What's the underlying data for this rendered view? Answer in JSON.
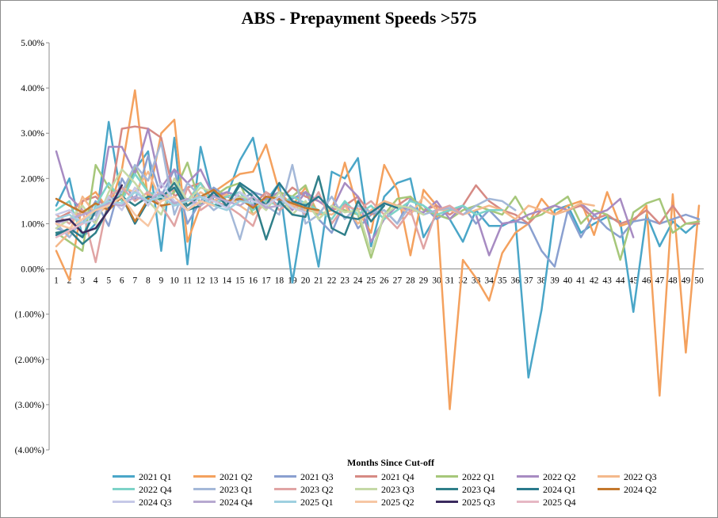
{
  "chart_data": {
    "type": "line",
    "title": "ABS - Prepayment Speeds >575",
    "xlabel": "Months Since Cut-off",
    "ylabel": "",
    "x": [
      1,
      2,
      3,
      4,
      5,
      6,
      7,
      8,
      9,
      10,
      11,
      12,
      13,
      14,
      15,
      16,
      17,
      18,
      19,
      20,
      21,
      22,
      23,
      24,
      25,
      26,
      27,
      28,
      29,
      30,
      31,
      32,
      33,
      34,
      35,
      36,
      37,
      38,
      39,
      40,
      41,
      42,
      43,
      44,
      45,
      46,
      47,
      48,
      49,
      50
    ],
    "ylim": [
      -4,
      5
    ],
    "yticks": [
      -4,
      -3,
      -2,
      -1,
      0,
      1,
      2,
      3,
      4,
      5
    ],
    "ytick_labels": [
      "(4.00%)",
      "(3.00%)",
      "(2.00%)",
      "(1.00%)",
      "0.00%",
      "1.00%",
      "2.00%",
      "3.00%",
      "4.00%",
      "5.00%"
    ],
    "grid": false,
    "legend_position": "bottom",
    "series": [
      {
        "name": "2021 Q1",
        "color": "#4aa6c8",
        "values": [
          1.4,
          2.0,
          0.7,
          1.0,
          3.25,
          1.5,
          2.2,
          2.6,
          0.4,
          2.9,
          0.1,
          2.7,
          1.5,
          1.6,
          2.4,
          2.9,
          1.5,
          1.9,
          -0.3,
          1.5,
          0.05,
          2.15,
          2.0,
          2.45,
          0.5,
          1.6,
          1.9,
          2.0,
          0.7,
          1.2,
          1.1,
          0.6,
          1.3,
          0.95,
          0.95,
          1.1,
          -2.4,
          -0.9,
          1.3,
          1.4,
          0.8,
          1.0,
          1.15,
          1.05,
          -0.95,
          1.2,
          0.5,
          1.05,
          0.8,
          1.05
        ]
      },
      {
        "name": "2021 Q2",
        "color": "#f4a15e",
        "values": [
          0.4,
          -0.25,
          1.5,
          1.7,
          1.3,
          2.2,
          3.95,
          1.5,
          3.0,
          3.3,
          0.6,
          1.4,
          1.7,
          1.9,
          2.1,
          2.15,
          2.75,
          1.7,
          1.4,
          1.8,
          1.2,
          1.3,
          2.35,
          1.3,
          0.8,
          2.3,
          1.75,
          0.3,
          1.75,
          1.4,
          -3.1,
          0.2,
          -0.2,
          -0.7,
          0.35,
          0.8,
          1.0,
          1.55,
          1.2,
          1.4,
          1.5,
          0.75,
          1.7,
          0.95,
          1.05,
          1.4,
          -2.8,
          1.65,
          -1.85,
          1.4
        ]
      },
      {
        "name": "2021 Q3",
        "color": "#8aa0d0",
        "values": [
          0.9,
          0.8,
          1.0,
          1.5,
          0.95,
          2.0,
          1.5,
          2.5,
          1.6,
          2.2,
          1.0,
          1.5,
          1.8,
          1.6,
          1.5,
          1.7,
          1.6,
          1.4,
          1.55,
          1.7,
          1.1,
          0.8,
          1.5,
          0.9,
          1.2,
          1.3,
          1.0,
          1.55,
          1.4,
          1.1,
          1.3,
          1.4,
          1.0,
          1.3,
          1.0,
          1.05,
          1.0,
          0.4,
          0.05,
          1.3,
          0.7,
          1.2,
          0.9,
          0.7,
          1.05,
          1.1,
          1.0,
          1.1,
          1.2,
          1.1
        ]
      },
      {
        "name": "2021 Q4",
        "color": "#d68a84",
        "values": [
          1.1,
          1.25,
          1.5,
          1.6,
          1.3,
          3.1,
          3.15,
          3.1,
          2.9,
          1.6,
          1.8,
          1.9,
          1.5,
          1.7,
          1.6,
          1.4,
          1.7,
          1.5,
          1.8,
          1.6,
          1.5,
          1.3,
          1.4,
          1.6,
          1.2,
          1.5,
          1.4,
          1.6,
          1.3,
          1.4,
          1.2,
          1.4,
          1.85,
          1.5,
          1.3,
          1.2,
          1.0,
          1.3,
          1.2,
          1.3,
          1.4,
          1.1,
          1.2,
          1.0,
          1.1,
          1.3,
          1.0,
          1.4,
          1.0,
          1.0
        ]
      },
      {
        "name": "2022 Q1",
        "color": "#a6c77a",
        "values": [
          0.8,
          0.6,
          0.4,
          2.3,
          1.8,
          1.6,
          2.25,
          1.7,
          1.5,
          1.7,
          2.35,
          1.4,
          1.6,
          1.8,
          1.9,
          1.2,
          1.5,
          1.7,
          1.6,
          1.85,
          1.1,
          1.4,
          1.3,
          1.2,
          0.25,
          1.2,
          1.55,
          1.6,
          1.3,
          1.2,
          1.1,
          1.3,
          1.4,
          1.3,
          1.2,
          1.6,
          1.1,
          1.2,
          1.4,
          1.6,
          1.0,
          1.3,
          1.2,
          0.2,
          1.25,
          1.45,
          1.55,
          0.8,
          1.0,
          1.05
        ]
      },
      {
        "name": "2022 Q2",
        "color": "#a78bc2",
        "values": [
          2.6,
          1.6,
          1.3,
          1.0,
          2.7,
          2.7,
          2.1,
          3.1,
          1.8,
          2.2,
          1.9,
          2.2,
          1.6,
          1.7,
          1.6,
          1.4,
          1.55,
          1.7,
          1.3,
          1.7,
          1.5,
          1.3,
          1.9,
          1.6,
          0.6,
          1.1,
          1.4,
          1.3,
          1.25,
          1.5,
          1.1,
          1.4,
          1.2,
          0.3,
          1.0,
          1.05,
          1.2,
          1.3,
          1.4,
          1.3,
          1.45,
          1.2,
          1.3,
          1.55,
          0.7,
          null,
          null,
          null,
          null,
          null
        ]
      },
      {
        "name": "2022 Q3",
        "color": "#f4b98c",
        "values": [
          0.5,
          0.8,
          1.6,
          1.2,
          1.4,
          1.8,
          1.7,
          2.15,
          1.5,
          1.8,
          1.4,
          1.7,
          1.5,
          1.65,
          1.4,
          1.2,
          1.45,
          1.6,
          1.4,
          1.3,
          1.25,
          1.2,
          1.4,
          1.0,
          1.3,
          1.5,
          1.4,
          1.2,
          1.6,
          1.3,
          1.3,
          1.2,
          1.3,
          1.4,
          1.3,
          1.1,
          1.4,
          1.3,
          1.2,
          1.3,
          1.45,
          1.4,
          null,
          null,
          null,
          null,
          null,
          null,
          null,
          null
        ]
      },
      {
        "name": "2022 Q4",
        "color": "#7dd3c8",
        "values": [
          1.3,
          1.5,
          0.7,
          1.4,
          1.9,
          1.5,
          2.1,
          1.7,
          1.6,
          1.8,
          1.5,
          1.9,
          1.4,
          1.6,
          1.7,
          1.3,
          1.5,
          1.4,
          1.6,
          1.45,
          1.3,
          1.1,
          1.5,
          1.2,
          1.4,
          1.1,
          1.3,
          1.5,
          1.4,
          1.2,
          1.3,
          1.4,
          1.2,
          1.3,
          1.3,
          null,
          null,
          null,
          null,
          null,
          null,
          null,
          null,
          null,
          null,
          null,
          null,
          null,
          null,
          null
        ]
      },
      {
        "name": "2023 Q1",
        "color": "#a4b8d8",
        "values": [
          1.0,
          0.7,
          1.1,
          1.2,
          1.5,
          1.7,
          2.3,
          1.95,
          2.8,
          1.2,
          1.9,
          1.6,
          1.3,
          1.5,
          0.65,
          1.7,
          1.4,
          1.2,
          2.3,
          1.0,
          1.2,
          1.6,
          1.1,
          1.4,
          1.25,
          1.3,
          1.0,
          1.4,
          1.2,
          1.3,
          1.35,
          1.2,
          1.4,
          1.55,
          1.5,
          1.3,
          null,
          null,
          null,
          null,
          null,
          null,
          null,
          null,
          null,
          null,
          null,
          null,
          null,
          null
        ]
      },
      {
        "name": "2023 Q2",
        "color": "#e0a4a4",
        "values": [
          1.2,
          1.0,
          1.3,
          0.15,
          1.6,
          1.8,
          1.5,
          1.7,
          1.4,
          0.95,
          1.8,
          1.3,
          1.5,
          1.4,
          1.2,
          0.95,
          1.7,
          1.3,
          1.5,
          1.2,
          1.7,
          1.0,
          1.4,
          1.3,
          1.5,
          1.2,
          0.9,
          1.3,
          0.45,
          1.3,
          1.4,
          1.2,
          null,
          null,
          null,
          null,
          null,
          null,
          null,
          null,
          null,
          null,
          null,
          null,
          null,
          null,
          null,
          null,
          null,
          null
        ]
      },
      {
        "name": "2023 Q3",
        "color": "#c5d9a6",
        "values": [
          0.9,
          1.1,
          1.4,
          1.0,
          1.7,
          2.2,
          1.9,
          1.5,
          1.2,
          2.0,
          1.5,
          1.8,
          1.7,
          1.4,
          1.6,
          1.55,
          1.3,
          1.7,
          1.2,
          1.5,
          1.1,
          1.4,
          1.25,
          1.3,
          0.35,
          1.2,
          1.4,
          1.35,
          1.2,
          null,
          null,
          null,
          null,
          null,
          null,
          null,
          null,
          null,
          null,
          null,
          null,
          null,
          null,
          null,
          null,
          null,
          null,
          null,
          null,
          null
        ]
      },
      {
        "name": "2023 Q4",
        "color": "#2f7f89",
        "values": [
          0.8,
          0.85,
          0.55,
          0.8,
          1.35,
          1.6,
          1.4,
          1.6,
          1.55,
          1.9,
          1.4,
          1.6,
          1.4,
          1.4,
          1.85,
          1.6,
          0.65,
          1.5,
          1.2,
          1.15,
          2.05,
          0.9,
          0.75,
          1.5,
          1.05,
          1.4,
          null,
          null,
          null,
          null,
          null,
          null,
          null,
          null,
          null,
          null,
          null,
          null,
          null,
          null,
          null,
          null,
          null,
          null,
          null,
          null,
          null,
          null,
          null,
          null
        ]
      },
      {
        "name": "2024 Q1",
        "color": "#2a7a8c",
        "values": [
          0.75,
          0.9,
          0.7,
          1.3,
          1.5,
          1.6,
          1.0,
          1.5,
          1.6,
          1.8,
          1.3,
          1.4,
          1.7,
          1.4,
          1.9,
          1.7,
          1.4,
          1.9,
          1.5,
          1.4,
          1.6,
          1.3,
          1.15,
          1.1,
          1.25,
          1.45,
          1.35,
          null,
          null,
          null,
          null,
          null,
          null,
          null,
          null,
          null,
          null,
          null,
          null,
          null,
          null,
          null,
          null,
          null,
          null,
          null,
          null,
          null,
          null,
          null
        ]
      },
      {
        "name": "2024 Q2",
        "color": "#c4782c",
        "values": [
          1.55,
          1.4,
          1.25,
          1.45,
          1.3,
          1.6,
          1.05,
          1.55,
          1.4,
          1.45,
          1.5,
          1.6,
          1.75,
          1.5,
          1.55,
          1.35,
          1.6,
          1.55,
          1.45,
          1.35,
          1.3,
          null,
          null,
          null,
          null,
          null,
          null,
          null,
          null,
          null,
          null,
          null,
          null,
          null,
          null,
          null,
          null,
          null,
          null,
          null,
          null,
          null,
          null,
          null,
          null,
          null,
          null,
          null,
          null,
          null
        ]
      },
      {
        "name": "2024 Q3",
        "color": "#c6c9e8",
        "values": [
          1.2,
          1.3,
          1.0,
          1.1,
          1.6,
          1.3,
          1.8,
          1.4,
          1.9,
          1.5,
          1.3,
          1.6,
          1.5,
          1.35,
          1.7,
          1.5,
          1.4,
          1.6,
          1.35,
          1.25,
          null,
          null,
          null,
          null,
          null,
          null,
          null,
          null,
          null,
          null,
          null,
          null,
          null,
          null,
          null,
          null,
          null,
          null,
          null,
          null,
          null,
          null,
          null,
          null,
          null,
          null,
          null,
          null,
          null,
          null
        ]
      },
      {
        "name": "2024 Q4",
        "color": "#b7a9d0",
        "values": [
          1.0,
          1.1,
          1.2,
          1.3,
          1.45,
          1.4,
          1.6,
          1.5,
          1.7,
          1.45,
          1.55,
          1.4,
          1.6,
          1.5,
          1.4,
          1.6,
          1.35,
          1.4,
          null,
          null,
          null,
          null,
          null,
          null,
          null,
          null,
          null,
          null,
          null,
          null,
          null,
          null,
          null,
          null,
          null,
          null,
          null,
          null,
          null,
          null,
          null,
          null,
          null,
          null,
          null,
          null,
          null,
          null,
          null,
          null
        ]
      },
      {
        "name": "2025 Q1",
        "color": "#9ed0e0",
        "values": [
          1.1,
          1.2,
          1.0,
          1.35,
          1.5,
          1.45,
          1.7,
          1.5,
          1.6,
          1.4,
          1.5,
          1.6,
          1.4,
          1.3,
          1.5,
          1.45,
          null,
          null,
          null,
          null,
          null,
          null,
          null,
          null,
          null,
          null,
          null,
          null,
          null,
          null,
          null,
          null,
          null,
          null,
          null,
          null,
          null,
          null,
          null,
          null,
          null,
          null,
          null,
          null,
          null,
          null,
          null,
          null,
          null,
          null
        ]
      },
      {
        "name": "2025 Q2",
        "color": "#f7c7a4",
        "values": [
          1.0,
          0.9,
          1.1,
          1.3,
          1.4,
          1.6,
          1.2,
          0.95,
          1.5,
          1.6,
          1.3,
          1.5,
          1.4,
          null,
          null,
          null,
          null,
          null,
          null,
          null,
          null,
          null,
          null,
          null,
          null,
          null,
          null,
          null,
          null,
          null,
          null,
          null,
          null,
          null,
          null,
          null,
          null,
          null,
          null,
          null,
          null,
          null,
          null,
          null,
          null,
          null,
          null,
          null,
          null,
          null
        ]
      },
      {
        "name": "2025 Q3",
        "color": "#3a2a5e",
        "values": [
          1.05,
          1.1,
          0.8,
          0.9,
          1.3,
          1.85,
          null,
          null,
          null,
          null,
          null,
          null,
          null,
          null,
          null,
          null,
          null,
          null,
          null,
          null,
          null,
          null,
          null,
          null,
          null,
          null,
          null,
          null,
          null,
          null,
          null,
          null,
          null,
          null,
          null,
          null,
          null,
          null,
          null,
          null,
          null,
          null,
          null,
          null,
          null,
          null,
          null,
          null,
          null,
          null
        ]
      },
      {
        "name": "2025 Q4",
        "color": "#e6b8c4",
        "values": [
          0.7,
          0.85,
          1.0,
          null,
          null,
          null,
          null,
          null,
          null,
          null,
          null,
          null,
          null,
          null,
          null,
          null,
          null,
          null,
          null,
          null,
          null,
          null,
          null,
          null,
          null,
          null,
          null,
          null,
          null,
          null,
          null,
          null,
          null,
          null,
          null,
          null,
          null,
          null,
          null,
          null,
          null,
          null,
          null,
          null,
          null,
          null,
          null,
          null,
          null,
          null
        ]
      }
    ]
  }
}
